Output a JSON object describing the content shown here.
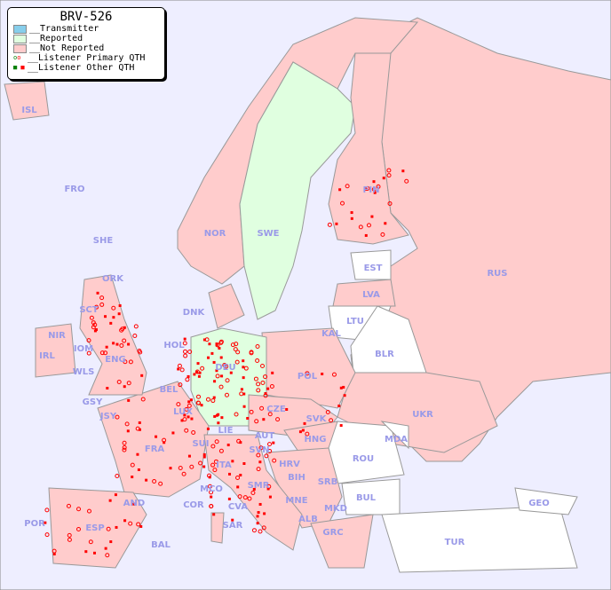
{
  "legend": {
    "title": "BRV-526",
    "items": [
      {
        "label": "__Transmitter",
        "color": "#87ceeb"
      },
      {
        "label": "__Reported",
        "color": "#e0ffe0"
      },
      {
        "label": "__Not Reported",
        "color": "#ffcccc"
      },
      {
        "label": "__Listener Primary QTH",
        "marker": "circle"
      },
      {
        "label": "__Listener Other QTH",
        "marker": "square"
      }
    ]
  },
  "colors": {
    "sea": "#eeeeff",
    "not_reported": "#ffcccc",
    "reported": "#e0ffe0",
    "no_data": "#ffffff",
    "listener": "#ff0000",
    "label": "#9a9ae8"
  },
  "countries": [
    "ISL",
    "FRO",
    "SHE",
    "ORK",
    "NOR",
    "SWE",
    "FIN",
    "RUS",
    "EST",
    "LVA",
    "LTU",
    "DNK",
    "SCT",
    "NIR",
    "IOM",
    "IRL",
    "WLS",
    "ENG",
    "HOL",
    "KAL",
    "BLR",
    "POL",
    "DEU",
    "BEL",
    "GSY",
    "JSY",
    "LUX",
    "CZE",
    "SVK",
    "UKR",
    "FRA",
    "SUI",
    "LIE",
    "AUT",
    "HNG",
    "MDA",
    "SVN",
    "HRV",
    "ROU",
    "ITA",
    "BIH",
    "SRB",
    "SMR",
    "MCO",
    "COR",
    "AND",
    "CVA",
    "MNE",
    "BUL",
    "GEO",
    "ALB",
    "MKD",
    "POR",
    "ESP",
    "SAR",
    "GRC",
    "TUR",
    "BAL"
  ]
}
